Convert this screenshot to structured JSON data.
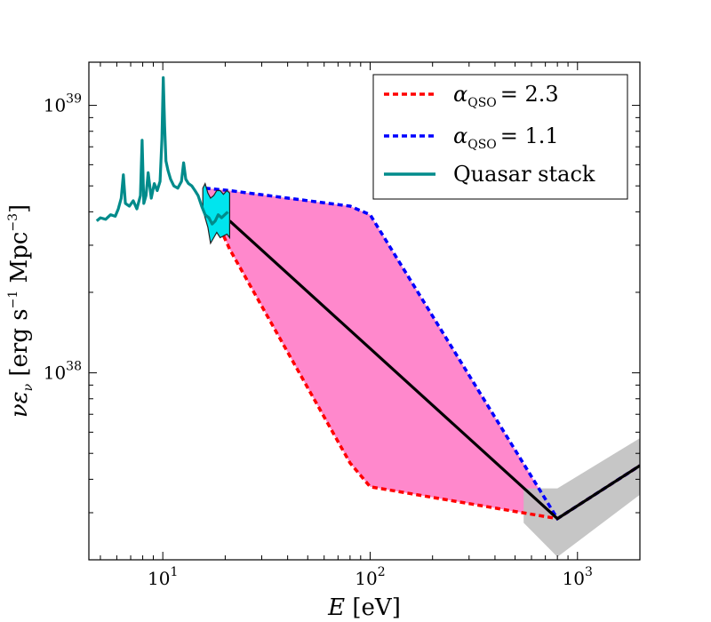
{
  "chart_data": {
    "type": "line",
    "xscale": "log",
    "yscale": "log",
    "xlim": [
      4.4,
      2000
    ],
    "ylim": [
      2e+37,
      1.45e+39
    ],
    "xlabel": {
      "var": "E",
      "unit": "[eV]"
    },
    "ylabel": {
      "pre": "νε",
      "sub": "ν",
      "unit": " [erg s",
      "sup1": "−1",
      "mid": " Mpc",
      "sup2": "−3",
      "end": "]"
    },
    "xticks": [
      {
        "value": 10,
        "base": "10",
        "exp": "1"
      },
      {
        "value": 100,
        "base": "10",
        "exp": "2"
      },
      {
        "value": 1000,
        "base": "10",
        "exp": "3"
      }
    ],
    "yticks": [
      {
        "value": 1e+38,
        "base": "10",
        "exp": "38"
      },
      {
        "value": 1e+39,
        "base": "10",
        "exp": "39"
      }
    ],
    "legend": {
      "position": "top-right",
      "entries": [
        {
          "alpha": "α",
          "sub": "QSO",
          "value": "= 2.3",
          "color": "#ff0000",
          "style": "dashed"
        },
        {
          "alpha": "α",
          "sub": "QSO",
          "value": "= 1.1",
          "color": "#0000ff",
          "style": "dashed"
        },
        {
          "label": "Quasar stack",
          "color": "#008b8b",
          "style": "solid"
        }
      ]
    },
    "series": [
      {
        "name": "Quasar stack",
        "color": "#008b8b",
        "style": "solid",
        "x": [
          4.8,
          5.0,
          5.3,
          5.6,
          5.9,
          6.1,
          6.3,
          6.45,
          6.6,
          6.9,
          7.2,
          7.5,
          7.8,
          7.95,
          8.1,
          8.3,
          8.5,
          8.8,
          9.1,
          9.4,
          9.7,
          9.9,
          10.05,
          10.2,
          10.35,
          10.6,
          10.9,
          11.3,
          11.8,
          12.3,
          12.6,
          12.9,
          13.3,
          13.8,
          14.3,
          14.8,
          15.4,
          16.0,
          16.7,
          17.3,
          17.9,
          18.5,
          19.2,
          19.9,
          20.6
        ],
        "y": [
          3.7e+38,
          3.8e+38,
          3.75e+38,
          3.9e+38,
          3.85e+38,
          4.1e+38,
          4.5e+38,
          5.5e+38,
          4.3e+38,
          4.2e+38,
          4.4e+38,
          4.1e+38,
          4.6e+38,
          7.4e+38,
          4.3e+38,
          4.6e+38,
          5.6e+38,
          4.5e+38,
          5.1e+38,
          4.8e+38,
          5.2e+38,
          7.5e+38,
          1.27e+39,
          8.4e+38,
          6.2e+38,
          5.7e+38,
          5.3e+38,
          5e+38,
          4.9e+38,
          5.2e+38,
          6.1e+38,
          5.3e+38,
          5.1e+38,
          5e+38,
          4.8e+38,
          4.6e+38,
          4.2e+38,
          3.9e+38,
          3.8e+38,
          3.6e+38,
          3.7e+38,
          3.9e+38,
          3.8e+38,
          3.9e+38,
          4e+38
        ]
      },
      {
        "name": "Quasar stack uncertainty",
        "color": "#00e5ee",
        "style": "band",
        "x": [
          15.6,
          16.0,
          16.5,
          17.0,
          17.6,
          18.2,
          18.9,
          19.6,
          20.4,
          21.0
        ],
        "ylow": [
          4.1e+38,
          3.8e+38,
          3.5e+38,
          3.05e+38,
          3.2e+38,
          3.35e+38,
          3.2e+38,
          3.25e+38,
          3.3e+38,
          3.2e+38
        ],
        "yhigh": [
          4.9e+38,
          5.1e+38,
          4.7e+38,
          4.5e+38,
          4.6e+38,
          4.8e+38,
          4.8e+38,
          4.65e+38,
          4.8e+38,
          4.7e+38
        ]
      },
      {
        "name": "α_QSO = 2.3",
        "color": "#ff0000",
        "style": "dashed",
        "x": [
          16,
          21,
          80,
          100,
          800,
          2000
        ],
        "y": [
          4.6e+38,
          2.9e+38,
          4.6e+37,
          3.75e+37,
          2.85e+37,
          4.5e+37
        ]
      },
      {
        "name": "α_QSO = 1.1",
        "color": "#0000ff",
        "style": "dashed",
        "x": [
          16,
          21,
          80,
          100,
          800,
          2000
        ],
        "y": [
          4.9e+38,
          4.8e+38,
          4.2e+38,
          3.9e+38,
          2.85e+37,
          4.5e+37
        ]
      },
      {
        "name": "Central model",
        "color": "#000000",
        "style": "solid",
        "x": [
          21,
          800,
          2000
        ],
        "y": [
          3.7e+38,
          2.85e+37,
          4.5e+37
        ]
      },
      {
        "name": "Model range (shaded)",
        "color": "#ff88cc",
        "style": "fill"
      },
      {
        "name": "High-energy uncertainty",
        "color": "#c0c0c0",
        "style": "band",
        "x": [
          550,
          800,
          2000
        ],
        "ylow": [
          2.75e+37,
          2.05e+37,
          3.5e+37
        ],
        "yhigh": [
          3.7e+37,
          3.7e+37,
          5.7e+37
        ]
      }
    ]
  }
}
